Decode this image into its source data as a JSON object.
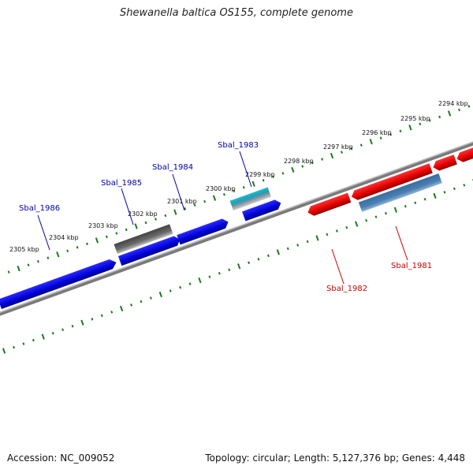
{
  "title": "Shewanella baltica OS155, complete genome",
  "footer": {
    "accession": "Accession: NC_009052",
    "summary": "Topology: circular; Length: 5,127,376 bp; Genes: 4,448"
  },
  "colors": {
    "forward_gene": "#0000e0",
    "reverse_gene": "#e00000",
    "other_forward": "#666666",
    "trna": "#22bbcc",
    "other_reverse": "#4a7fb0",
    "ticks": "#1a7a1a",
    "backbone": "#7a7a7a",
    "label_forward": "#0000aa",
    "label_reverse": "#cc0000"
  },
  "scale": {
    "labels": [
      "2294 kbp",
      "2295 kbp",
      "2296 kbp",
      "2297 kbp",
      "2298 kbp",
      "2299 kbp",
      "2300 kbp",
      "2301 kbp",
      "2302 kbp",
      "2303 kbp",
      "2304 kbp",
      "2305 kbp"
    ]
  },
  "gene_labels": {
    "forward": [
      "Sbal_1986",
      "Sbal_1985",
      "Sbal_1984",
      "Sbal_1983"
    ],
    "reverse": [
      "Sbal_1982",
      "Sbal_1981"
    ]
  }
}
